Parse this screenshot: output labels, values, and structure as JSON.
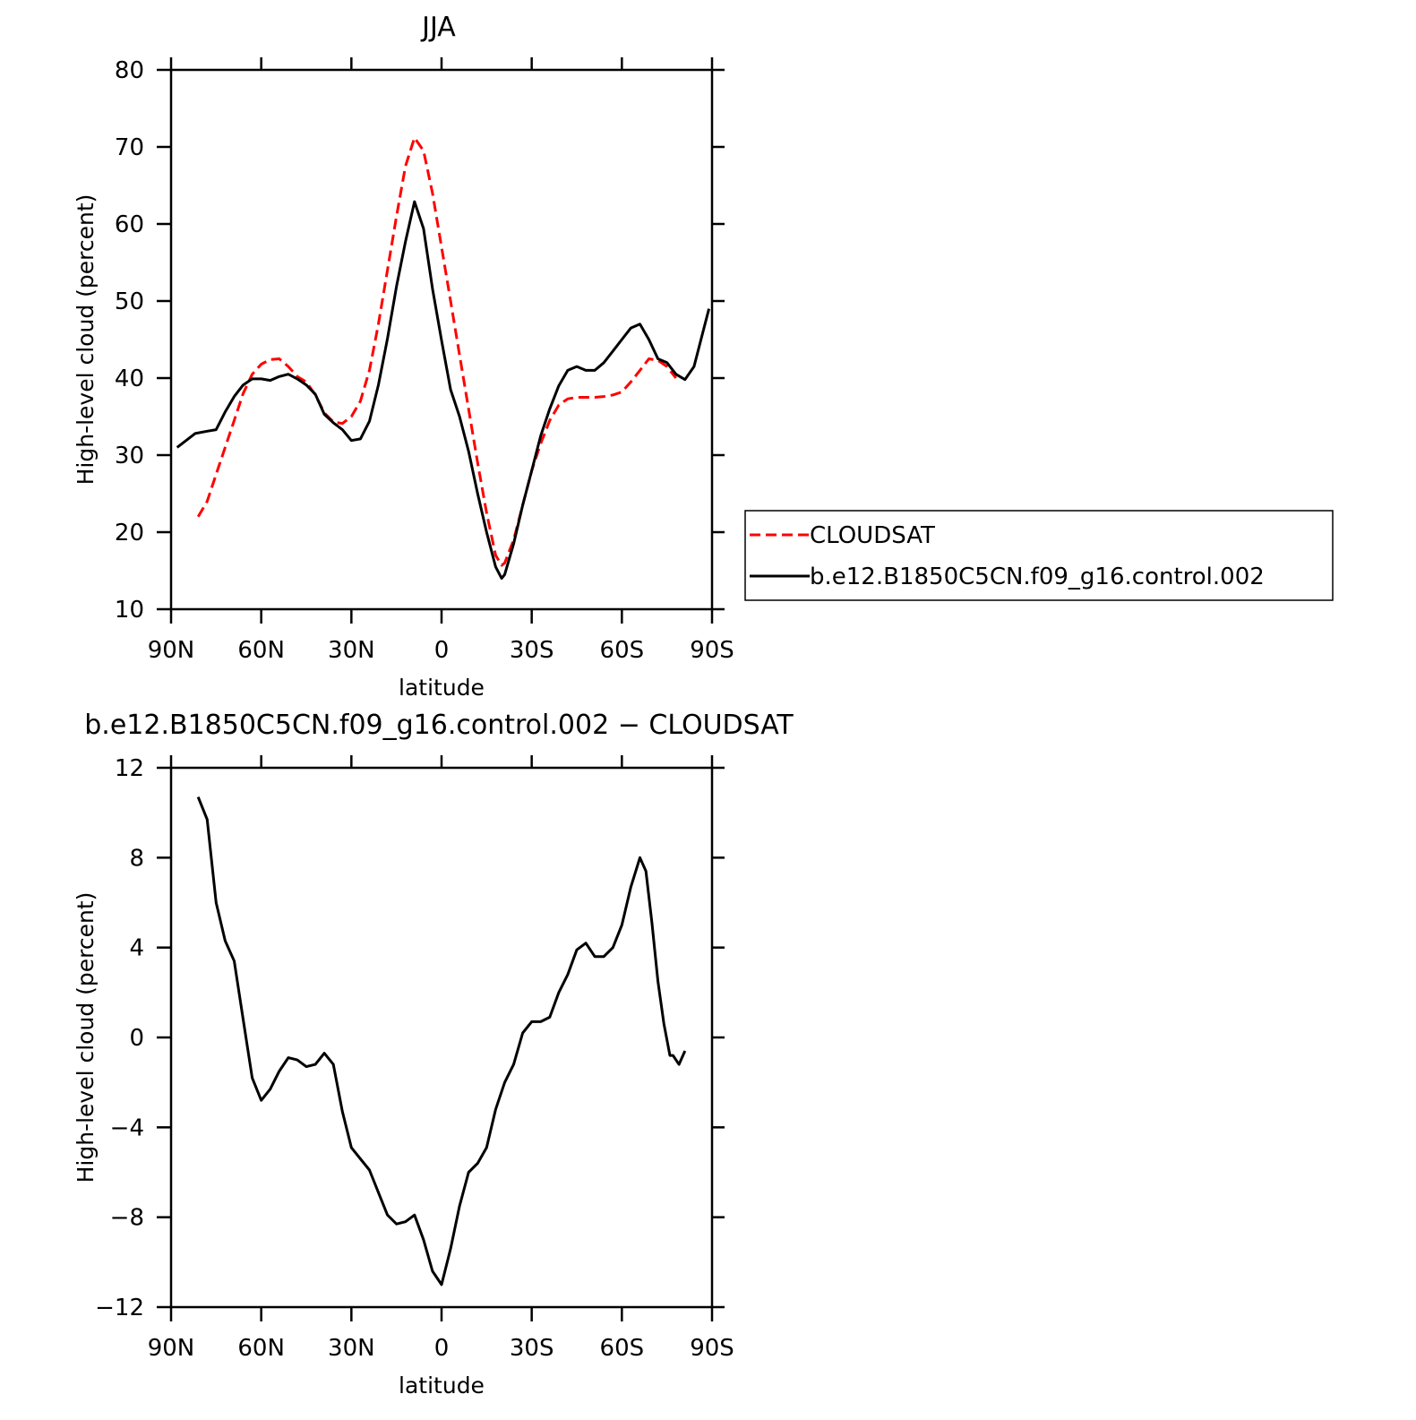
{
  "chart_data": [
    {
      "type": "line",
      "title": "JJA",
      "xlabel": "latitude",
      "ylabel": "High-level cloud (percent)",
      "xlim": [
        90,
        -90
      ],
      "xticks": [
        {
          "value": 90,
          "label": "90N"
        },
        {
          "value": 60,
          "label": "60N"
        },
        {
          "value": 30,
          "label": "30N"
        },
        0,
        {
          "value": -30,
          "label": "30S"
        },
        {
          "value": -60,
          "label": "60S"
        },
        {
          "value": -90,
          "label": "90S"
        }
      ],
      "ylim": [
        10,
        80
      ],
      "yticks": [
        10,
        20,
        30,
        40,
        50,
        60,
        70,
        80
      ],
      "legend": "right",
      "series": [
        {
          "name": "CLOUDSAT",
          "color": "#ff0000",
          "dash": "12 6",
          "x": [
            81,
            78,
            75,
            72,
            69,
            66,
            63,
            60,
            57,
            54,
            51,
            48,
            45,
            42,
            39,
            36,
            33,
            30,
            27,
            24,
            21,
            18,
            15,
            12,
            9,
            6,
            3,
            0,
            -3,
            -6,
            -9,
            -12,
            -15,
            -18,
            -20,
            -21,
            -24,
            -27,
            -30,
            -33,
            -36,
            -39,
            -42,
            -45,
            -48,
            -51,
            -54,
            -57,
            -60,
            -63,
            -66,
            -69,
            -72,
            -75,
            -78
          ],
          "values": [
            22,
            24,
            27.5,
            31,
            34.5,
            38,
            40.5,
            41.8,
            42.4,
            42.5,
            41.5,
            40.2,
            39.5,
            37.8,
            35.5,
            34.3,
            34.1,
            35,
            37,
            41,
            47,
            54,
            61,
            67.5,
            71.2,
            69.5,
            64,
            57,
            50,
            43,
            36,
            29,
            22.5,
            17,
            15.7,
            16,
            19,
            23.5,
            28,
            31.5,
            34.5,
            36.5,
            37.3,
            37.5,
            37.5,
            37.5,
            37.6,
            37.8,
            38.2,
            39.5,
            41,
            42.5,
            42.3,
            41.5,
            40
          ]
        },
        {
          "name": "b.e12.B1850C5CN.f09_g16.control.002",
          "color": "#000000",
          "x": [
            88,
            85,
            82,
            78,
            75,
            72,
            69,
            66,
            63,
            60,
            57,
            54,
            51,
            48,
            45,
            42,
            39,
            36,
            33,
            30,
            27,
            24,
            21,
            18,
            15,
            12,
            9,
            6,
            3,
            0,
            -3,
            -6,
            -9,
            -12,
            -15,
            -18,
            -20,
            -21,
            -24,
            -27,
            -30,
            -33,
            -36,
            -39,
            -42,
            -45,
            -48,
            -51,
            -54,
            -57,
            -60,
            -63,
            -66,
            -69,
            -72,
            -75,
            -78,
            -81,
            -84,
            -87,
            -89
          ],
          "values": [
            31,
            31.9,
            32.8,
            33.1,
            33.3,
            35.6,
            37.6,
            39.1,
            39.9,
            39.9,
            39.7,
            40.2,
            40.5,
            39.9,
            39.1,
            37.9,
            35.3,
            34.2,
            33.3,
            31.9,
            32.1,
            34.4,
            39.1,
            45.1,
            51.9,
            57.7,
            62.9,
            59.4,
            51.6,
            44.9,
            38.5,
            35,
            30.5,
            25,
            20,
            15.5,
            14,
            14.5,
            18.5,
            23.5,
            28,
            32.5,
            36,
            39,
            41,
            41.5,
            41,
            41,
            42,
            43.5,
            45,
            46.5,
            47,
            45,
            42.5,
            42,
            40.5,
            39.8,
            41.5,
            46,
            49
          ]
        }
      ]
    },
    {
      "type": "line",
      "title": "b.e12.B1850C5CN.f09_g16.control.002 − CLOUDSAT",
      "xlabel": "latitude",
      "ylabel": "High-level cloud (percent)",
      "xlim": [
        90,
        -90
      ],
      "xticks": [
        {
          "value": 90,
          "label": "90N"
        },
        {
          "value": 60,
          "label": "60N"
        },
        {
          "value": 30,
          "label": "30N"
        },
        0,
        {
          "value": -30,
          "label": "30S"
        },
        {
          "value": -60,
          "label": "60S"
        },
        {
          "value": -90,
          "label": "90S"
        }
      ],
      "ylim": [
        -12,
        12
      ],
      "yticks": [
        {
          "value": -12,
          "label": "−12"
        },
        {
          "value": -8,
          "label": "−8"
        },
        {
          "value": -4,
          "label": "−4"
        },
        0,
        4,
        8,
        12
      ],
      "series": [
        {
          "color": "#000000",
          "x": [
            81,
            78,
            75,
            72,
            69,
            66,
            63,
            60,
            57,
            54,
            51,
            48,
            45,
            42,
            39,
            36,
            33,
            30,
            27,
            24,
            21,
            18,
            15,
            12,
            9,
            6,
            3,
            0,
            -3,
            -6,
            -9,
            -12,
            -15,
            -18,
            -21,
            -24,
            -27,
            -30,
            -33,
            -36,
            -39,
            -42,
            -45,
            -48,
            -51,
            -54,
            -57,
            -60,
            -63,
            -66,
            -68,
            -70,
            -72,
            -74,
            -76,
            -77,
            -79,
            -81
          ],
          "values": [
            10.7,
            9.7,
            6,
            4.3,
            3.4,
            0.8,
            -1.8,
            -2.8,
            -2.3,
            -1.5,
            -0.9,
            -1,
            -1.3,
            -1.2,
            -0.7,
            -1.2,
            -3.3,
            -4.9,
            -5.4,
            -5.9,
            -6.9,
            -7.9,
            -8.3,
            -8.2,
            -7.9,
            -9,
            -10.4,
            -11,
            -9.4,
            -7.5,
            -6,
            -5.6,
            -4.9,
            -3.2,
            -2,
            -1.2,
            0.2,
            0.7,
            0.7,
            0.9,
            2,
            2.8,
            3.9,
            4.2,
            3.6,
            3.6,
            4,
            5,
            6.7,
            8,
            7.4,
            5.1,
            2.5,
            0.6,
            -0.8,
            -0.8,
            -1.2,
            -0.6
          ]
        }
      ]
    }
  ]
}
